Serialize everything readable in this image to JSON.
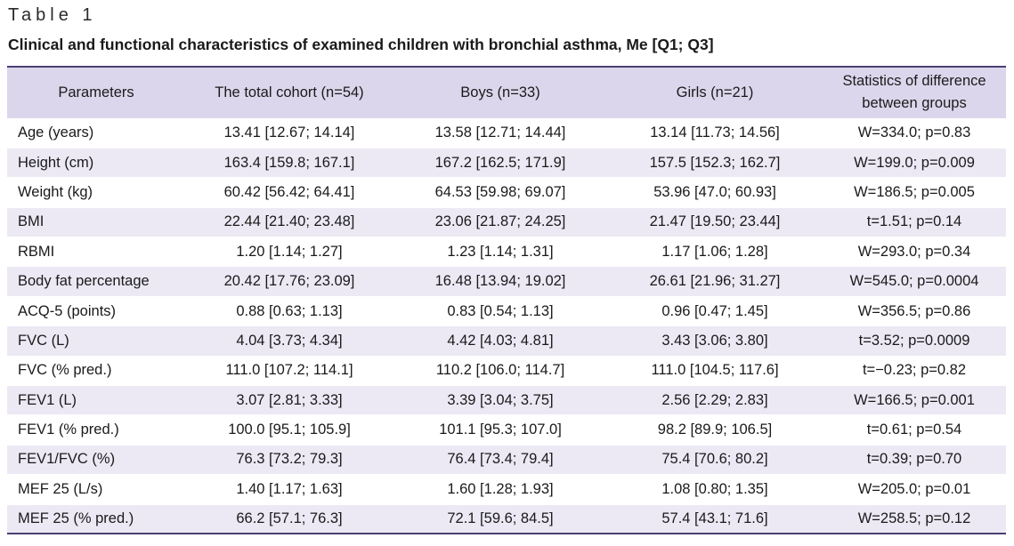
{
  "table_label": "Table 1",
  "caption": "Clinical and functional characteristics of examined children with bronchial asthma, Me [Q1; Q3]",
  "headers": [
    "Parameters",
    "The total cohort (n=54)",
    "Boys (n=33)",
    "Girls (n=21)",
    "Statistics of difference between groups"
  ],
  "rows": [
    [
      "Age (years)",
      "13.41 [12.67; 14.14]",
      "13.58 [12.71; 14.44]",
      "13.14 [11.73; 14.56]",
      "W=334.0; p=0.83"
    ],
    [
      "Height (cm)",
      "163.4 [159.8; 167.1]",
      "167.2 [162.5; 171.9]",
      "157.5 [152.3; 162.7]",
      "W=199.0; p=0.009"
    ],
    [
      "Weight (kg)",
      "60.42 [56.42; 64.41]",
      "64.53 [59.98; 69.07]",
      "53.96 [47.0; 60.93]",
      "W=186.5; p=0.005"
    ],
    [
      "BMI",
      "22.44 [21.40; 23.48]",
      "23.06 [21.87; 24.25]",
      "21.47 [19.50; 23.44]",
      "t=1.51; p=0.14"
    ],
    [
      "RBMI",
      "1.20 [1.14; 1.27]",
      "1.23 [1.14; 1.31]",
      "1.17 [1.06; 1.28]",
      "W=293.0; p=0.34"
    ],
    [
      "Body fat percentage",
      "20.42 [17.76; 23.09]",
      "16.48 [13.94; 19.02]",
      "26.61 [21.96; 31.27]",
      "W=545.0; p=0.0004"
    ],
    [
      "ACQ-5 (points)",
      "0.88 [0.63; 1.13]",
      "0.83 [0.54; 1.13]",
      "0.96 [0.47; 1.45]",
      "W=356.5; p=0.86"
    ],
    [
      "FVC (L)",
      "4.04 [3.73; 4.34]",
      "4.42 [4.03; 4.81]",
      "3.43 [3.06; 3.80]",
      "t=3.52; p=0.0009"
    ],
    [
      "FVC (% pred.)",
      "111.0 [107.2; 114.1]",
      "110.2 [106.0; 114.7]",
      "111.0 [104.5; 117.6]",
      "t=−0.23; p=0.82"
    ],
    [
      "FEV1 (L)",
      "3.07 [2.81; 3.33]",
      "3.39 [3.04; 3.75]",
      "2.56 [2.29; 2.83]",
      "W=166.5; p=0.001"
    ],
    [
      "FEV1 (% pred.)",
      "100.0 [95.1; 105.9]",
      "101.1 [95.3; 107.0]",
      "98.2 [89.9; 106.5]",
      "t=0.61; p=0.54"
    ],
    [
      "FEV1/FVC (%)",
      "76.3 [73.2; 79.3]",
      "76.4 [73.4; 79.4]",
      "75.4 [70.6; 80.2]",
      "t=0.39; p=0.70"
    ],
    [
      "MEF 25 (L/s)",
      "1.40 [1.17; 1.63]",
      "1.60 [1.28; 1.93]",
      "1.08 [0.80; 1.35]",
      "W=205.0; p=0.01"
    ],
    [
      "MEF 25 (% pred.)",
      "66.2 [57.1; 76.3]",
      "72.1 [59.6; 84.5]",
      "57.4 [43.1; 71.6]",
      "W=258.5; p=0.12"
    ]
  ],
  "colors": {
    "header_bg": "#dcd6ec",
    "stripe_bg": "#ece9f5",
    "rule": "#4b3f72"
  }
}
